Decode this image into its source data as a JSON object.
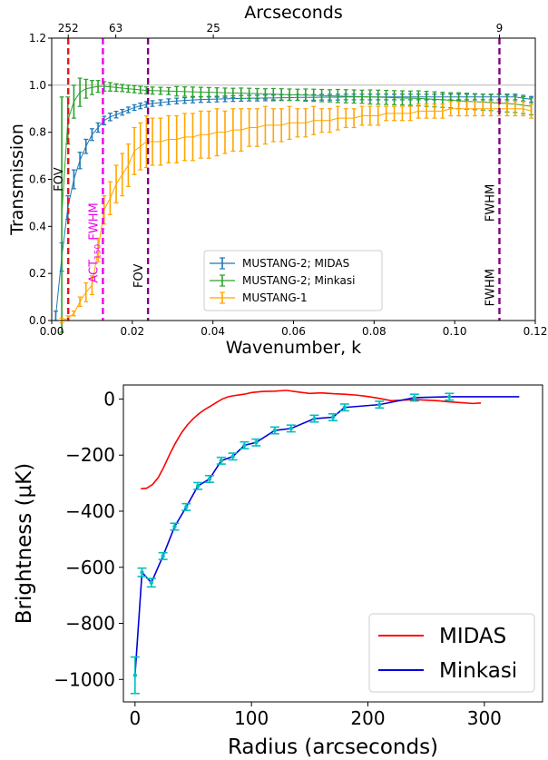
{
  "chart_data": [
    {
      "type": "line",
      "top_xlabel": "Arcseconds",
      "top_ticks": [
        "252",
        "63",
        "25",
        "9"
      ],
      "top_tick_k": [
        0.0041,
        0.0159,
        0.0401,
        0.1111
      ],
      "xlabel": "Wavenumber, k",
      "ylabel": "Transmission",
      "xlim": [
        0,
        0.12
      ],
      "ylim": [
        0,
        1.2
      ],
      "xticks": [
        "0.00",
        "0.02",
        "0.04",
        "0.06",
        "0.08",
        "0.10",
        "0.12"
      ],
      "yticks": [
        "0.0",
        "0.2",
        "0.4",
        "0.6",
        "0.8",
        "1.0",
        "1.2"
      ],
      "hline_y": 1.0,
      "legend_position": "lower-center",
      "series": [
        {
          "name": "MUSTANG-2; MIDAS",
          "color": "#1f77b4",
          "x": [
            0.001,
            0.0025,
            0.004,
            0.0055,
            0.007,
            0.0085,
            0.01,
            0.0115,
            0.013,
            0.0145,
            0.016,
            0.0175,
            0.019,
            0.0205,
            0.022,
            0.0235,
            0.025,
            0.027,
            0.029,
            0.031,
            0.033,
            0.035,
            0.037,
            0.039,
            0.041,
            0.043,
            0.045,
            0.047,
            0.049,
            0.051,
            0.053,
            0.055,
            0.057,
            0.059,
            0.061,
            0.063,
            0.065,
            0.067,
            0.069,
            0.071,
            0.073,
            0.075,
            0.077,
            0.079,
            0.081,
            0.083,
            0.085,
            0.087,
            0.089,
            0.091,
            0.093,
            0.095,
            0.097,
            0.099,
            0.101,
            0.103,
            0.105,
            0.107,
            0.109,
            0.111,
            0.113,
            0.115,
            0.117,
            0.119
          ],
          "y": [
            0.02,
            0.27,
            0.48,
            0.6,
            0.68,
            0.74,
            0.79,
            0.82,
            0.85,
            0.865,
            0.875,
            0.885,
            0.895,
            0.905,
            0.912,
            0.918,
            0.922,
            0.926,
            0.93,
            0.933,
            0.935,
            0.937,
            0.939,
            0.94,
            0.941,
            0.942,
            0.943,
            0.944,
            0.945,
            0.945,
            0.946,
            0.946,
            0.947,
            0.947,
            0.948,
            0.948,
            0.948,
            0.949,
            0.949,
            0.949,
            0.95,
            0.95,
            0.95,
            0.95,
            0.95,
            0.95,
            0.95,
            0.95,
            0.95,
            0.95,
            0.95,
            0.95,
            0.95,
            0.95,
            0.95,
            0.95,
            0.95,
            0.95,
            0.95,
            0.95,
            0.95,
            0.95,
            0.945,
            0.94
          ],
          "err": [
            0.02,
            0.06,
            0.05,
            0.04,
            0.035,
            0.03,
            0.025,
            0.02,
            0.018,
            0.016,
            0.014,
            0.012,
            0.012,
            0.012,
            0.012,
            0.012,
            0.012,
            0.012,
            0.012,
            0.012,
            0.012,
            0.012,
            0.012,
            0.012,
            0.012,
            0.012,
            0.012,
            0.012,
            0.012,
            0.012,
            0.012,
            0.012,
            0.012,
            0.012,
            0.012,
            0.012,
            0.012,
            0.012,
            0.012,
            0.012,
            0.012,
            0.012,
            0.012,
            0.012,
            0.012,
            0.012,
            0.012,
            0.012,
            0.012,
            0.012,
            0.012,
            0.012,
            0.012,
            0.012,
            0.012,
            0.012,
            0.012,
            0.012,
            0.012,
            0.012,
            0.012,
            0.012,
            0.012,
            0.012
          ]
        },
        {
          "name": "MUSTANG-2; Minkasi",
          "color": "#2ca02c",
          "x": [
            0.0025,
            0.004,
            0.0055,
            0.007,
            0.0085,
            0.01,
            0.0115,
            0.013,
            0.0145,
            0.016,
            0.0175,
            0.019,
            0.0205,
            0.022,
            0.0235,
            0.025,
            0.027,
            0.029,
            0.031,
            0.033,
            0.035,
            0.037,
            0.039,
            0.041,
            0.043,
            0.045,
            0.047,
            0.049,
            0.051,
            0.053,
            0.055,
            0.057,
            0.059,
            0.061,
            0.063,
            0.065,
            0.067,
            0.069,
            0.071,
            0.073,
            0.075,
            0.077,
            0.079,
            0.081,
            0.083,
            0.085,
            0.087,
            0.089,
            0.091,
            0.093,
            0.095,
            0.097,
            0.099,
            0.101,
            0.103,
            0.105,
            0.107,
            0.109,
            0.111,
            0.113,
            0.115,
            0.117,
            0.119
          ],
          "y": [
            0.45,
            0.85,
            0.93,
            0.97,
            0.985,
            0.99,
            0.995,
            0.995,
            0.993,
            0.99,
            0.988,
            0.985,
            0.983,
            0.98,
            0.978,
            0.977,
            0.976,
            0.975,
            0.974,
            0.973,
            0.972,
            0.971,
            0.97,
            0.969,
            0.968,
            0.967,
            0.966,
            0.965,
            0.964,
            0.963,
            0.962,
            0.961,
            0.96,
            0.959,
            0.958,
            0.957,
            0.956,
            0.955,
            0.954,
            0.953,
            0.952,
            0.951,
            0.95,
            0.949,
            0.948,
            0.947,
            0.946,
            0.945,
            0.944,
            0.942,
            0.94,
            0.938,
            0.936,
            0.934,
            0.932,
            0.93,
            0.928,
            0.926,
            0.924,
            0.922,
            0.92,
            0.915,
            0.91
          ],
          "err": [
            0.5,
            0.1,
            0.07,
            0.06,
            0.04,
            0.03,
            0.025,
            0.02,
            0.018,
            0.016,
            0.015,
            0.015,
            0.015,
            0.015,
            0.015,
            0.015,
            0.015,
            0.015,
            0.02,
            0.02,
            0.02,
            0.02,
            0.02,
            0.02,
            0.02,
            0.02,
            0.022,
            0.022,
            0.022,
            0.022,
            0.024,
            0.024,
            0.024,
            0.024,
            0.026,
            0.026,
            0.026,
            0.026,
            0.028,
            0.028,
            0.028,
            0.028,
            0.03,
            0.03,
            0.03,
            0.03,
            0.03,
            0.03,
            0.032,
            0.032,
            0.032,
            0.032,
            0.032,
            0.034,
            0.034,
            0.034,
            0.034,
            0.034,
            0.036,
            0.036,
            0.036,
            0.036,
            0.036
          ]
        },
        {
          "name": "MUSTANG-1",
          "color": "#ffa500",
          "x": [
            0.0025,
            0.004,
            0.0055,
            0.007,
            0.0085,
            0.01,
            0.0115,
            0.013,
            0.0145,
            0.016,
            0.0175,
            0.019,
            0.0205,
            0.022,
            0.0235,
            0.025,
            0.027,
            0.029,
            0.031,
            0.033,
            0.035,
            0.037,
            0.039,
            0.041,
            0.043,
            0.045,
            0.047,
            0.049,
            0.051,
            0.053,
            0.055,
            0.057,
            0.059,
            0.061,
            0.063,
            0.065,
            0.067,
            0.069,
            0.071,
            0.073,
            0.075,
            0.077,
            0.079,
            0.081,
            0.083,
            0.085,
            0.087,
            0.089,
            0.091,
            0.093,
            0.095,
            0.097,
            0.099,
            0.101,
            0.103,
            0.105,
            0.107,
            0.109,
            0.111,
            0.113,
            0.115,
            0.117,
            0.119
          ],
          "y": [
            0.0,
            0.01,
            0.03,
            0.08,
            0.12,
            0.15,
            0.3,
            0.47,
            0.52,
            0.58,
            0.62,
            0.66,
            0.72,
            0.74,
            0.76,
            0.76,
            0.76,
            0.77,
            0.77,
            0.78,
            0.78,
            0.79,
            0.79,
            0.8,
            0.8,
            0.81,
            0.81,
            0.82,
            0.82,
            0.83,
            0.83,
            0.83,
            0.84,
            0.84,
            0.84,
            0.85,
            0.85,
            0.85,
            0.86,
            0.86,
            0.86,
            0.87,
            0.87,
            0.87,
            0.88,
            0.88,
            0.88,
            0.88,
            0.89,
            0.89,
            0.89,
            0.89,
            0.9,
            0.9,
            0.9,
            0.9,
            0.9,
            0.9,
            0.9,
            0.9,
            0.9,
            0.9,
            0.89
          ],
          "err": [
            0.01,
            0.01,
            0.01,
            0.02,
            0.04,
            0.04,
            0.05,
            0.06,
            0.07,
            0.08,
            0.09,
            0.09,
            0.1,
            0.1,
            0.11,
            0.1,
            0.1,
            0.1,
            0.1,
            0.1,
            0.1,
            0.1,
            0.1,
            0.1,
            0.09,
            0.09,
            0.09,
            0.08,
            0.08,
            0.08,
            0.07,
            0.07,
            0.07,
            0.06,
            0.06,
            0.06,
            0.05,
            0.05,
            0.05,
            0.04,
            0.04,
            0.04,
            0.04,
            0.04,
            0.03,
            0.03,
            0.03,
            0.03,
            0.03,
            0.03,
            0.03,
            0.03,
            0.03,
            0.03,
            0.03,
            0.03,
            0.03,
            0.03,
            0.03,
            0.03,
            0.03,
            0.03,
            0.03
          ]
        }
      ],
      "vlines": [
        {
          "x": 0.0041,
          "color": "#e41a1c",
          "label": "FOV",
          "label_y": 0.6
        },
        {
          "x": 0.0127,
          "color": "#ee00ee",
          "label": "ACT150 FWHM",
          "label_y": 0.33
        },
        {
          "x": 0.0239,
          "color": "#800080",
          "label": "FOV",
          "label_y": 0.19
        },
        {
          "x": 0.1111,
          "color": "#800080",
          "label": "FWHM",
          "label_y": 0.5,
          "label2": "FWHM",
          "label2_y": 0.14
        }
      ]
    },
    {
      "type": "line",
      "xlabel": "Radius (arcseconds)",
      "ylabel": "Brightness (μK)",
      "xlim": [
        -10,
        350
      ],
      "ylim": [
        -1080,
        50
      ],
      "xticks": [
        "0",
        "100",
        "200",
        "300"
      ],
      "yticks": [
        "0",
        "−200",
        "−400",
        "−600",
        "−800",
        "−1000"
      ],
      "legend_position": "lower-right",
      "series": [
        {
          "name": "MIDAS",
          "color": "#ff0000",
          "x": [
            5,
            10,
            15,
            20,
            25,
            30,
            35,
            40,
            45,
            50,
            55,
            60,
            65,
            70,
            75,
            80,
            85,
            90,
            95,
            100,
            110,
            120,
            130,
            140,
            150,
            160,
            170,
            180,
            190,
            200,
            210,
            220,
            230,
            240,
            250,
            260,
            270,
            280,
            290,
            297
          ],
          "y": [
            -320,
            -318,
            -305,
            -280,
            -240,
            -195,
            -155,
            -120,
            -92,
            -70,
            -52,
            -37,
            -25,
            -12,
            0,
            8,
            12,
            15,
            18,
            23,
            27,
            28,
            31,
            25,
            20,
            22,
            19,
            17,
            14,
            9,
            2,
            -6,
            -4,
            -2,
            -4,
            -6,
            -10,
            -13,
            -16,
            -14
          ]
        },
        {
          "name": "Minkasi",
          "color": "#0000dd",
          "err_color": "#00bfbf",
          "x": [
            0,
            6,
            14,
            24,
            34,
            44,
            54,
            64,
            74,
            84,
            94,
            104,
            120,
            134,
            154,
            170,
            180,
            210,
            240,
            270,
            330
          ],
          "y": [
            -985,
            -618,
            -655,
            -560,
            -455,
            -385,
            -310,
            -285,
            -220,
            -205,
            -165,
            -155,
            -112,
            -105,
            -70,
            -65,
            -30,
            -20,
            5,
            8,
            8
          ],
          "err": [
            65,
            15,
            15,
            12,
            12,
            12,
            12,
            12,
            12,
            12,
            12,
            12,
            12,
            12,
            12,
            12,
            12,
            12,
            12,
            12,
            0
          ],
          "marker": [
            true,
            true,
            true,
            true,
            true,
            true,
            true,
            true,
            true,
            true,
            true,
            true,
            true,
            true,
            true,
            true,
            true,
            true,
            true,
            true,
            false
          ]
        }
      ]
    }
  ]
}
